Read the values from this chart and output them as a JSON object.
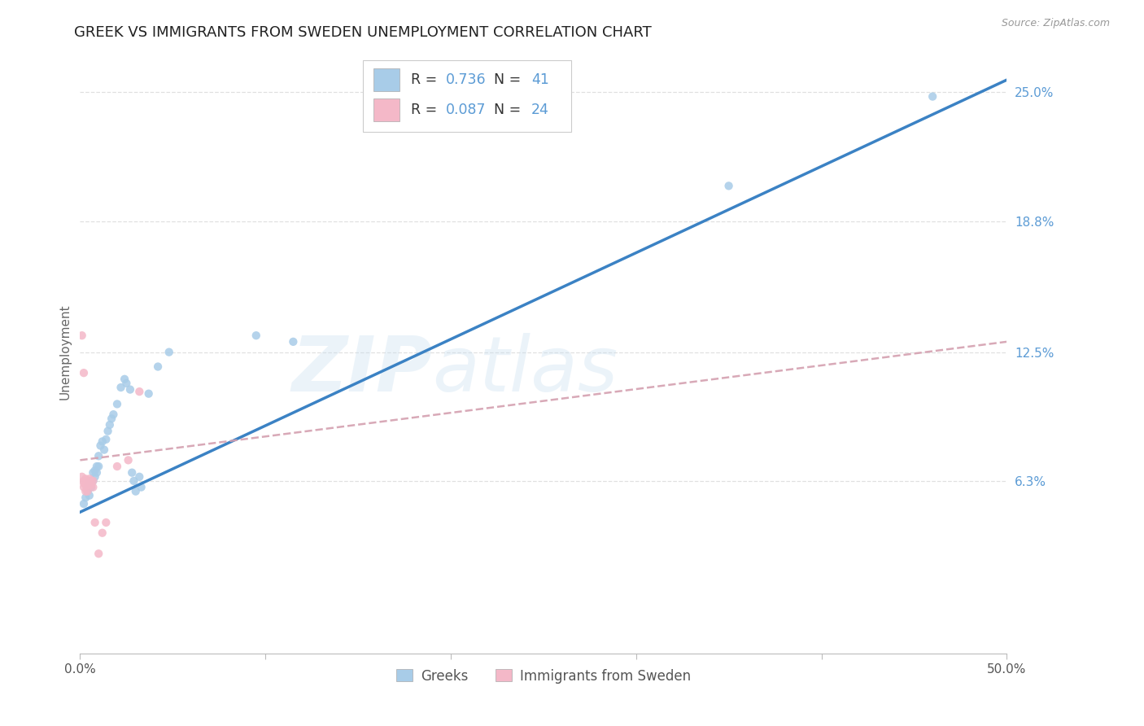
{
  "title": "GREEK VS IMMIGRANTS FROM SWEDEN UNEMPLOYMENT CORRELATION CHART",
  "source": "Source: ZipAtlas.com",
  "ylabel": "Unemployment",
  "xlim": [
    0.0,
    0.5
  ],
  "ylim": [
    -0.02,
    0.27
  ],
  "yticks": [
    0.063,
    0.125,
    0.188,
    0.25
  ],
  "ytick_labels": [
    "6.3%",
    "12.5%",
    "18.8%",
    "25.0%"
  ],
  "xticks": [
    0.0,
    0.1,
    0.2,
    0.3,
    0.4,
    0.5
  ],
  "xtick_labels": [
    "0.0%",
    "",
    "",
    "",
    "",
    "50.0%"
  ],
  "watermark_line1": "ZIP",
  "watermark_line2": "atlas",
  "blue_color": "#a8cce8",
  "pink_color": "#f4b8c8",
  "line_blue": "#3b82c4",
  "line_pink_dashed": "#d4a0b0",
  "background": "#ffffff",
  "grid_color": "#e0e0e0",
  "title_color": "#222222",
  "axis_label_color": "#666666",
  "ytick_color": "#5b9bd5",
  "blue_scatter": [
    [
      0.002,
      0.052
    ],
    [
      0.003,
      0.055
    ],
    [
      0.004,
      0.058
    ],
    [
      0.004,
      0.06
    ],
    [
      0.005,
      0.056
    ],
    [
      0.005,
      0.063
    ],
    [
      0.006,
      0.06
    ],
    [
      0.006,
      0.063
    ],
    [
      0.007,
      0.063
    ],
    [
      0.007,
      0.067
    ],
    [
      0.008,
      0.065
    ],
    [
      0.008,
      0.068
    ],
    [
      0.009,
      0.067
    ],
    [
      0.009,
      0.07
    ],
    [
      0.01,
      0.07
    ],
    [
      0.01,
      0.075
    ],
    [
      0.011,
      0.08
    ],
    [
      0.012,
      0.082
    ],
    [
      0.013,
      0.078
    ],
    [
      0.014,
      0.083
    ],
    [
      0.015,
      0.087
    ],
    [
      0.016,
      0.09
    ],
    [
      0.017,
      0.093
    ],
    [
      0.018,
      0.095
    ],
    [
      0.02,
      0.1
    ],
    [
      0.022,
      0.108
    ],
    [
      0.024,
      0.112
    ],
    [
      0.025,
      0.11
    ],
    [
      0.027,
      0.107
    ],
    [
      0.028,
      0.067
    ],
    [
      0.029,
      0.063
    ],
    [
      0.03,
      0.058
    ],
    [
      0.032,
      0.065
    ],
    [
      0.033,
      0.06
    ],
    [
      0.037,
      0.105
    ],
    [
      0.042,
      0.118
    ],
    [
      0.048,
      0.125
    ],
    [
      0.095,
      0.133
    ],
    [
      0.115,
      0.13
    ],
    [
      0.35,
      0.205
    ],
    [
      0.46,
      0.248
    ]
  ],
  "pink_scatter": [
    [
      0.001,
      0.133
    ],
    [
      0.002,
      0.115
    ],
    [
      0.001,
      0.065
    ],
    [
      0.002,
      0.063
    ],
    [
      0.002,
      0.062
    ],
    [
      0.002,
      0.06
    ],
    [
      0.003,
      0.058
    ],
    [
      0.003,
      0.064
    ],
    [
      0.003,
      0.061
    ],
    [
      0.004,
      0.058
    ],
    [
      0.004,
      0.063
    ],
    [
      0.005,
      0.061
    ],
    [
      0.005,
      0.064
    ],
    [
      0.006,
      0.063
    ],
    [
      0.006,
      0.061
    ],
    [
      0.007,
      0.063
    ],
    [
      0.007,
      0.06
    ],
    [
      0.008,
      0.043
    ],
    [
      0.01,
      0.028
    ],
    [
      0.012,
      0.038
    ],
    [
      0.014,
      0.043
    ],
    [
      0.02,
      0.07
    ],
    [
      0.026,
      0.073
    ],
    [
      0.032,
      0.106
    ]
  ],
  "blue_trendline": [
    [
      0.0,
      0.048
    ],
    [
      0.5,
      0.256
    ]
  ],
  "pink_trendline": [
    [
      0.0,
      0.073
    ],
    [
      0.5,
      0.13
    ]
  ],
  "title_fontsize": 13,
  "axis_fontsize": 11,
  "tick_fontsize": 11,
  "scatter_size": 55,
  "legend_r1_black": "R = ",
  "legend_v1_blue": "0.736",
  "legend_n1_black": "   N = ",
  "legend_n1_blue": "41",
  "legend_r2_black": "R = ",
  "legend_v2_blue": "0.087",
  "legend_n2_black": "   N = ",
  "legend_n2_blue": "24"
}
